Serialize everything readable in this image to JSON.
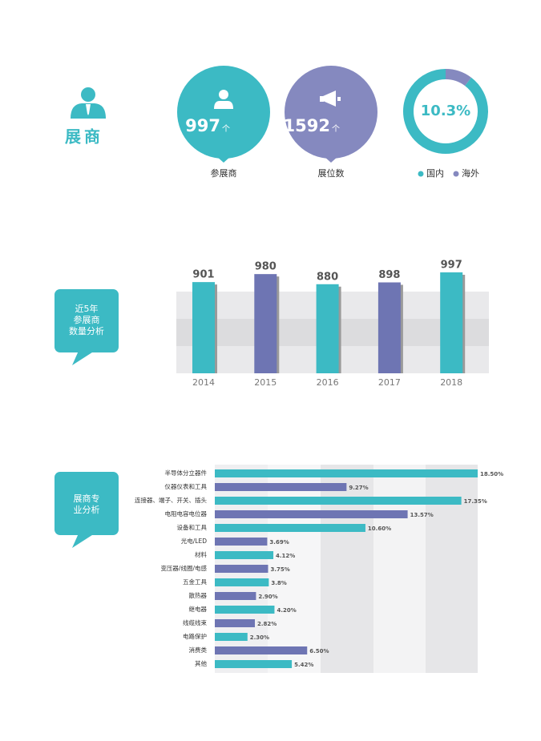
{
  "header": {
    "title": "展商"
  },
  "stats": [
    {
      "value": 997,
      "unit": "个",
      "label": "参展商"
    },
    {
      "value": 1592,
      "unit": "个",
      "label": "展位数"
    }
  ],
  "chart_data": [
    {
      "type": "pie",
      "categories": [
        "国内",
        "海外"
      ],
      "values": [
        89.7,
        10.3
      ],
      "value_labels": [
        null,
        "10.3%"
      ],
      "colors": [
        "#3cbac4",
        "#8589bf"
      ]
    },
    {
      "type": "bar",
      "title": [
        "近5年",
        "参展商",
        "数量分析"
      ],
      "categories": [
        "2014",
        "2015",
        "2016",
        "2017",
        "2018"
      ],
      "values": [
        901,
        980,
        880,
        898,
        997
      ],
      "colors": [
        "#3cbac4",
        "#6e75b3",
        "#3cbac4",
        "#6e75b3",
        "#3cbac4"
      ]
    },
    {
      "type": "hbar",
      "title": [
        "展商专",
        "业分析"
      ],
      "categories": [
        "半导体分立器件",
        "仪器仪表和工具",
        "连接器、端子、开关、插头",
        "电阻电容电位器",
        "设备和工具",
        "光电/LED",
        "材料",
        "变压器/线圈/电感",
        "五金工具",
        "散热器",
        "继电器",
        "线缆线束",
        "电路保护",
        "消费类",
        "其他"
      ],
      "values": [
        18.5,
        9.27,
        17.35,
        13.57,
        10.6,
        3.69,
        4.12,
        3.75,
        3.8,
        2.9,
        4.2,
        2.82,
        2.3,
        6.5,
        5.42
      ],
      "value_labels": [
        "18.50%",
        "9.27%",
        "17.35%",
        "13.57%",
        "10.60%",
        "3.69%",
        "4.12%",
        "3.75%",
        "3.8%",
        "2.90%",
        "4.20%",
        "2.82%",
        "2.30%",
        "6.50%",
        "5.42%"
      ],
      "colors": [
        "#3cbac4",
        "#6e75b3",
        "#3cbac4",
        "#6e75b3",
        "#3cbac4",
        "#6e75b3",
        "#3cbac4",
        "#6e75b3",
        "#3cbac4",
        "#6e75b3",
        "#3cbac4",
        "#6e75b3",
        "#3cbac4",
        "#6e75b3",
        "#3cbac4"
      ]
    }
  ]
}
